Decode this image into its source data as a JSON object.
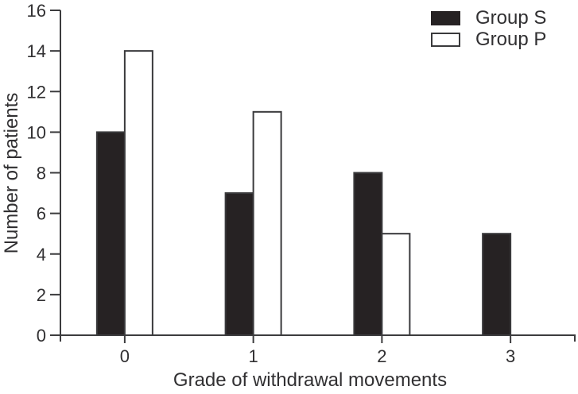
{
  "chart_data": {
    "type": "bar",
    "title": "",
    "xlabel": "Grade of withdrawal movements",
    "ylabel": "Number of patients",
    "categories": [
      "0",
      "1",
      "2",
      "3"
    ],
    "series": [
      {
        "name": "Group S",
        "values": [
          10,
          7,
          8,
          5
        ],
        "fill": "#262223"
      },
      {
        "name": "Group P",
        "values": [
          14,
          11,
          5,
          0
        ],
        "fill": "#ffffff"
      }
    ],
    "ylim": [
      0,
      16
    ],
    "ytick_step": 2,
    "grid": false,
    "legend_position": "top-right"
  },
  "colors": {
    "background": "#ffffff",
    "axis": "#3c3c3e",
    "bar_stroke": "#3a3a3c",
    "text": "#313032"
  }
}
